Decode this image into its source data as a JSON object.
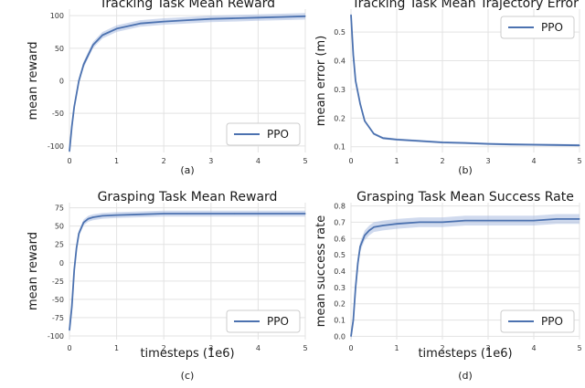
{
  "figure": {
    "panel_captions": [
      "(a)",
      "(b)",
      "(c)",
      "(d)"
    ]
  },
  "style": {
    "line_color": "#4c72b0",
    "band_color": "#a9bce0",
    "panel_bg": "#ffffff",
    "grid_color": "#e3e3e3"
  },
  "chart_data": [
    {
      "type": "line",
      "title": "Tracking Task Mean Reward",
      "xlabel": "",
      "ylabel": "mean reward",
      "caption": "(a)",
      "xlim": [
        0,
        5
      ],
      "ylim": [
        -110,
        110
      ],
      "xticks": [
        0,
        1,
        2,
        3,
        4,
        5
      ],
      "yticks": [
        -100,
        -50,
        0,
        50,
        100
      ],
      "xtick_labels": [
        "0",
        "1",
        "2",
        "3",
        "4",
        "5"
      ],
      "ytick_labels": [
        "-100",
        "-50",
        "0",
        "50",
        "100"
      ],
      "grid": true,
      "legend": {
        "position": "bottom-right",
        "entries": [
          "PPO"
        ]
      },
      "series": [
        {
          "name": "PPO",
          "x": [
            0.0,
            0.05,
            0.1,
            0.2,
            0.3,
            0.5,
            0.7,
            1.0,
            1.5,
            2.0,
            2.5,
            3.0,
            3.5,
            4.0,
            4.5,
            5.0
          ],
          "values": [
            -108,
            -70,
            -40,
            0,
            25,
            55,
            70,
            80,
            88,
            91,
            93,
            95,
            96,
            97,
            98,
            99
          ],
          "band": 5
        }
      ]
    },
    {
      "type": "line",
      "title": "Tracking Task Mean Trajectory Error",
      "xlabel": "",
      "ylabel": "mean error (m)",
      "caption": "(b)",
      "xlim": [
        0,
        5
      ],
      "ylim": [
        0.08,
        0.58
      ],
      "xticks": [
        0,
        1,
        2,
        3,
        4,
        5
      ],
      "yticks": [
        0.1,
        0.2,
        0.3,
        0.4,
        0.5
      ],
      "xtick_labels": [
        "0",
        "1",
        "2",
        "3",
        "4",
        "5"
      ],
      "ytick_labels": [
        "0.1",
        "0.2",
        "0.3",
        "0.4",
        "0.5"
      ],
      "grid": true,
      "legend": {
        "position": "top-right",
        "entries": [
          "PPO"
        ]
      },
      "series": [
        {
          "name": "PPO",
          "x": [
            0.0,
            0.05,
            0.1,
            0.2,
            0.3,
            0.5,
            0.7,
            1.0,
            1.5,
            2.0,
            2.5,
            3.0,
            3.5,
            4.0,
            4.5,
            5.0
          ],
          "values": [
            0.56,
            0.42,
            0.33,
            0.25,
            0.19,
            0.145,
            0.13,
            0.125,
            0.12,
            0.115,
            0.113,
            0.11,
            0.108,
            0.107,
            0.106,
            0.105
          ],
          "band": 0.004
        }
      ]
    },
    {
      "type": "line",
      "title": "Grasping Task Mean Reward",
      "xlabel": "timesteps (1e6)",
      "ylabel": "mean reward",
      "caption": "(c)",
      "xlim": [
        0,
        5
      ],
      "ylim": [
        -105,
        82
      ],
      "xticks": [
        0,
        1,
        2,
        3,
        4,
        5
      ],
      "yticks": [
        -100,
        -75,
        -50,
        -25,
        0,
        25,
        50,
        75
      ],
      "xtick_labels": [
        "0",
        "1",
        "2",
        "3",
        "4",
        "5"
      ],
      "ytick_labels": [
        "-100",
        "-75",
        "-50",
        "-25",
        "0",
        "25",
        "50",
        "75"
      ],
      "grid": true,
      "legend": {
        "position": "bottom-right",
        "entries": [
          "PPO"
        ]
      },
      "series": [
        {
          "name": "PPO",
          "x": [
            0.0,
            0.05,
            0.1,
            0.15,
            0.2,
            0.3,
            0.4,
            0.5,
            0.7,
            1.0,
            1.5,
            2.0,
            2.5,
            3.0,
            3.5,
            4.0,
            4.5,
            5.0
          ],
          "values": [
            -92,
            -60,
            -10,
            20,
            40,
            55,
            60,
            62,
            64,
            65,
            66,
            67,
            67,
            67,
            67,
            67,
            67,
            67
          ],
          "band": 4
        }
      ]
    },
    {
      "type": "line",
      "title": "Grasping Task Mean Success Rate",
      "xlabel": "timesteps (1e6)",
      "ylabel": "mean success rate",
      "caption": "(d)",
      "xlim": [
        0,
        5
      ],
      "ylim": [
        -0.02,
        0.82
      ],
      "xticks": [
        0,
        1,
        2,
        3,
        4,
        5
      ],
      "yticks": [
        0.0,
        0.1,
        0.2,
        0.3,
        0.4,
        0.5,
        0.6,
        0.7,
        0.8
      ],
      "xtick_labels": [
        "0",
        "1",
        "2",
        "3",
        "4",
        "5"
      ],
      "ytick_labels": [
        "0.0",
        "0.1",
        "0.2",
        "0.3",
        "0.4",
        "0.5",
        "0.6",
        "0.7",
        "0.8"
      ],
      "grid": true,
      "legend": {
        "position": "bottom-right",
        "entries": [
          "PPO"
        ]
      },
      "series": [
        {
          "name": "PPO",
          "x": [
            0.0,
            0.05,
            0.1,
            0.15,
            0.2,
            0.3,
            0.4,
            0.5,
            0.7,
            1.0,
            1.5,
            2.0,
            2.5,
            3.0,
            3.5,
            4.0,
            4.5,
            5.0
          ],
          "values": [
            0.0,
            0.1,
            0.3,
            0.45,
            0.55,
            0.62,
            0.65,
            0.67,
            0.68,
            0.69,
            0.7,
            0.7,
            0.71,
            0.71,
            0.71,
            0.71,
            0.72,
            0.72
          ],
          "band": 0.03
        }
      ]
    }
  ]
}
